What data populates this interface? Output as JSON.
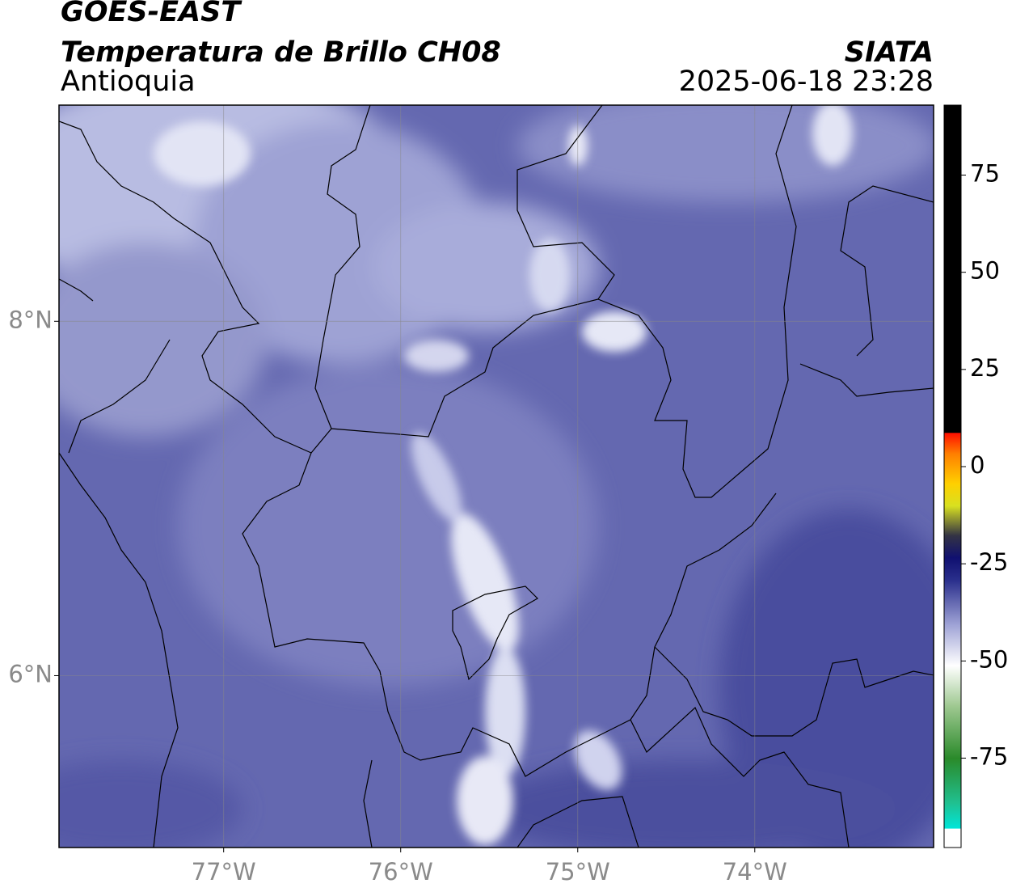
{
  "header": {
    "title": "GOES-EAST",
    "subtitle": "Temperatura de Brillo CH08",
    "region": "Antioquia",
    "source": "SIATA",
    "datetime": "2025-06-18 23:28"
  },
  "map": {
    "xlim": [
      -77.93,
      -72.99
    ],
    "ylim": [
      5.03,
      9.22
    ],
    "xticks": [
      {
        "value": -77,
        "label": "77°W"
      },
      {
        "value": -76,
        "label": "76°W"
      },
      {
        "value": -75,
        "label": "75°W"
      },
      {
        "value": -74,
        "label": "74°W"
      }
    ],
    "yticks": [
      {
        "value": 6,
        "label": "6°N"
      },
      {
        "value": 8,
        "label": "8°N"
      }
    ],
    "grid": true
  },
  "colorbar": {
    "lim": [
      -98,
      93
    ],
    "ticks": [
      75,
      50,
      25,
      0,
      -25,
      -50,
      -75
    ]
  }
}
